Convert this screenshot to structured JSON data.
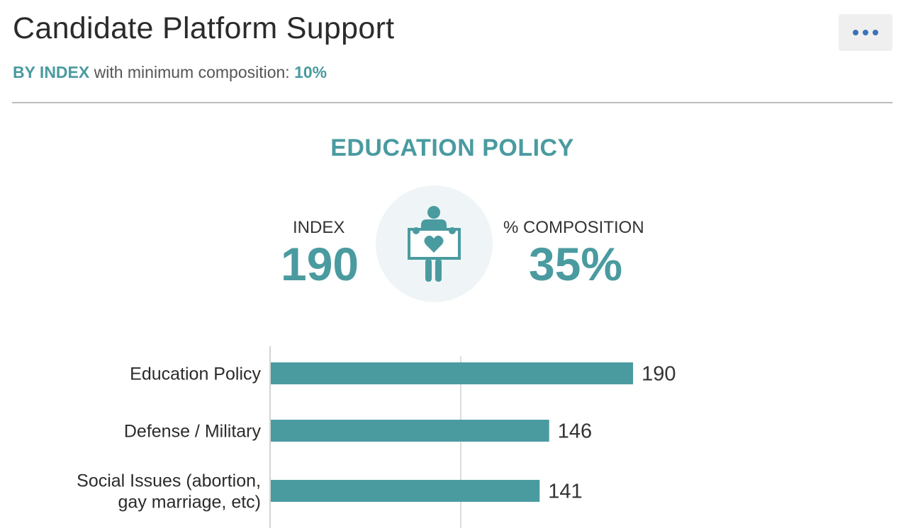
{
  "header": {
    "title": "Candidate Platform Support",
    "subtitle_prefix": "BY INDEX",
    "subtitle_mid": " with minimum composition: ",
    "subtitle_value": "10%",
    "menu_icon": "more-horizontal-icon"
  },
  "highlight": {
    "name": "EDUCATION POLICY",
    "index_label": "INDEX",
    "index_value": "190",
    "composition_label": "% COMPOSITION",
    "composition_value": "35%",
    "icon": "person-holding-heart-sign-icon"
  },
  "colors": {
    "accent": "#4a9ba0",
    "circle_bg": "#eff5f6",
    "menu_dots": "#3c72b8"
  },
  "chart_data": {
    "type": "bar",
    "orientation": "horizontal",
    "categories": [
      "Education Policy",
      "Defense / Military",
      "Social Issues (abortion, gay marriage, etc)"
    ],
    "category_lines": [
      [
        "Education Policy"
      ],
      [
        "Defense / Military"
      ],
      [
        "Social Issues (abortion,",
        "gay marriage, etc)"
      ]
    ],
    "values": [
      190,
      146,
      141
    ],
    "value_labels": [
      "190",
      "146",
      "141"
    ],
    "xlim": [
      0,
      300
    ],
    "reference_line": 100,
    "grid": true
  }
}
